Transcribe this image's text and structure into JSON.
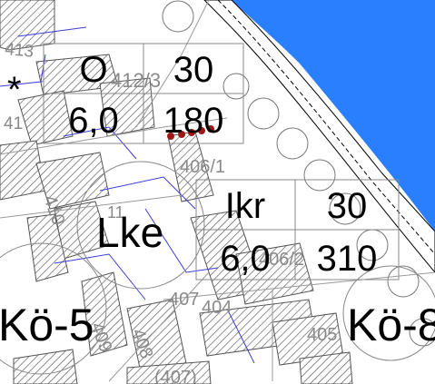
{
  "colors": {
    "water": "#2a7fff",
    "hatch": "#555555",
    "parcel_line": "#3b3bd8",
    "plot_line": "#808080",
    "marker": "#a01515"
  },
  "blocks": [
    {
      "use": "O",
      "number": "30",
      "efficiency": "6,0",
      "height": "180"
    },
    {
      "use": "Ikr",
      "number": "30",
      "efficiency": "6,0",
      "height": "310"
    }
  ],
  "zone_labels": {
    "lke": "Lke",
    "ko5": "Kö-5",
    "ko8": "Kö-8",
    "asterisk": "*"
  },
  "parcel_numbers": [
    "413",
    "412/3",
    "41",
    "406/1",
    "410",
    "11",
    "406/2",
    "407",
    "404",
    "409",
    "408",
    "405",
    "(407)"
  ]
}
